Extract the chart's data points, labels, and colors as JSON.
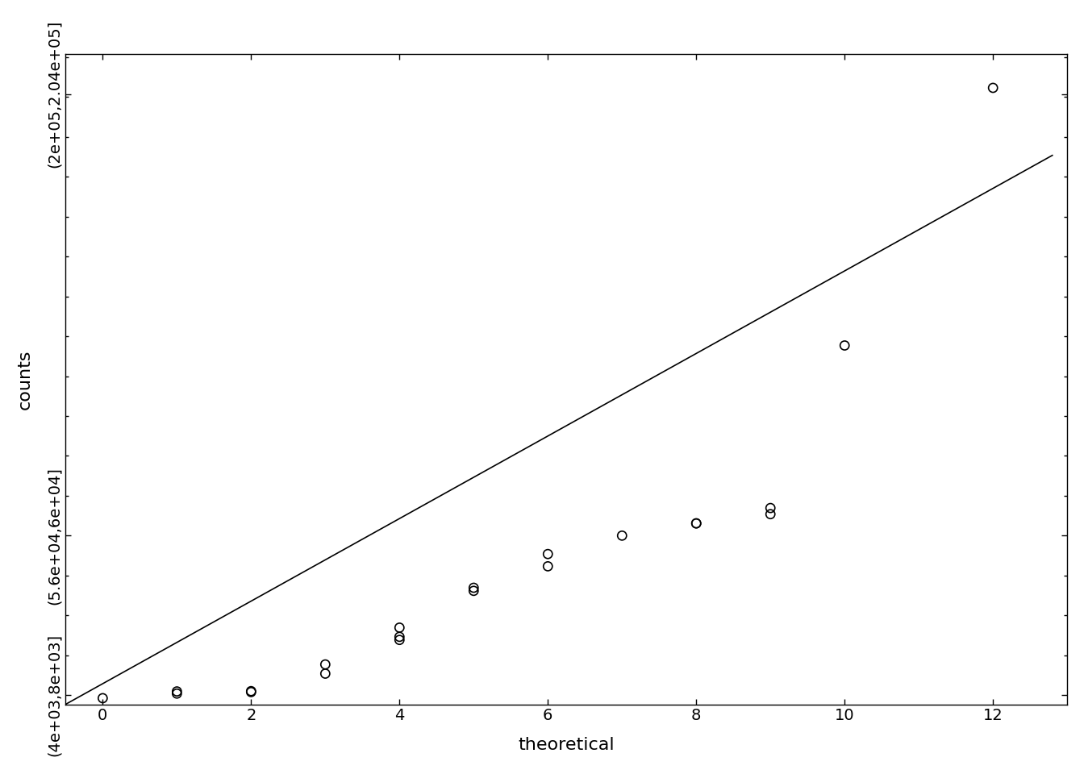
{
  "x_data": [
    0,
    1,
    1,
    2,
    2,
    3,
    3,
    4,
    4,
    4,
    5,
    5,
    6,
    6,
    7,
    8,
    8,
    9,
    9,
    10,
    12
  ],
  "y_data": [
    5000,
    6500,
    7200,
    7000,
    7300,
    13000,
    16000,
    28000,
    24000,
    25000,
    40000,
    41000,
    48000,
    52000,
    58000,
    62000,
    62000,
    65000,
    67000,
    120000,
    204000
  ],
  "line_x": [
    -0.5,
    12.8
  ],
  "line_y": [
    3000,
    182000
  ],
  "xlabel": "theoretical",
  "ylabel": "counts",
  "xlim": [
    -0.5,
    13.0
  ],
  "ylim": [
    3000,
    215000
  ],
  "ytick_positions": [
    6000,
    58000,
    202000
  ],
  "ytick_labels": [
    "(4e+03,8e+03]",
    "(5.6e+04,6e+04]",
    "(2e+05,2.04e+05]"
  ],
  "xtick_positions": [
    0,
    2,
    4,
    6,
    8,
    10,
    12
  ],
  "background_color": "#ffffff",
  "point_color": "#000000",
  "line_color": "#000000",
  "marker_size": 8,
  "font_size": 14,
  "axis_label_font_size": 16
}
